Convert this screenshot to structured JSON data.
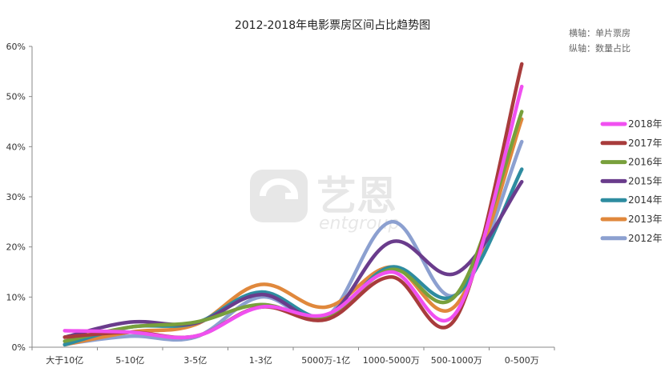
{
  "chart_data": {
    "type": "line",
    "title": "2012-2018年电影票房区间占比趋势图",
    "annotations": [
      "横轴：单片票房",
      "纵轴：数量占比"
    ],
    "watermark": {
      "brand": "艺恩",
      "sub": "entgroup"
    },
    "categories": [
      "大于10亿",
      "5-10亿",
      "3-5亿",
      "1-3亿",
      "5000万-1亿",
      "1000-5000万",
      "500-1000万",
      "0-500万"
    ],
    "ylim": [
      0,
      60
    ],
    "yticks": [
      "0%",
      "10%",
      "20%",
      "30%",
      "40%",
      "50%",
      "60%"
    ],
    "grid": false,
    "legend_position": "right",
    "series": [
      {
        "name": "2018年",
        "color": "#f050f0",
        "values": [
          3.3,
          3.0,
          2.2,
          8.0,
          6.5,
          15.0,
          7.0,
          52.0
        ]
      },
      {
        "name": "2017年",
        "color": "#a83c3c",
        "values": [
          2.0,
          3.0,
          2.2,
          8.0,
          5.5,
          14.0,
          6.0,
          56.5
        ]
      },
      {
        "name": "2016年",
        "color": "#78a03c",
        "values": [
          1.2,
          4.0,
          5.0,
          8.5,
          6.0,
          15.5,
          10.5,
          47.0
        ]
      },
      {
        "name": "2015年",
        "color": "#6a3c8c",
        "values": [
          2.0,
          5.0,
          4.8,
          10.5,
          6.0,
          21.0,
          14.8,
          33.0
        ]
      },
      {
        "name": "2014年",
        "color": "#2e8ca0",
        "values": [
          0.5,
          4.0,
          4.8,
          11.0,
          6.0,
          16.0,
          10.5,
          35.5
        ]
      },
      {
        "name": "2013年",
        "color": "#e0883c",
        "values": [
          0.5,
          3.0,
          4.5,
          12.5,
          8.0,
          16.0,
          8.5,
          45.5
        ]
      },
      {
        "name": "2012年",
        "color": "#8ca0d0",
        "values": [
          0.6,
          2.2,
          2.0,
          10.0,
          6.0,
          25.0,
          10.5,
          41.0
        ]
      }
    ]
  }
}
